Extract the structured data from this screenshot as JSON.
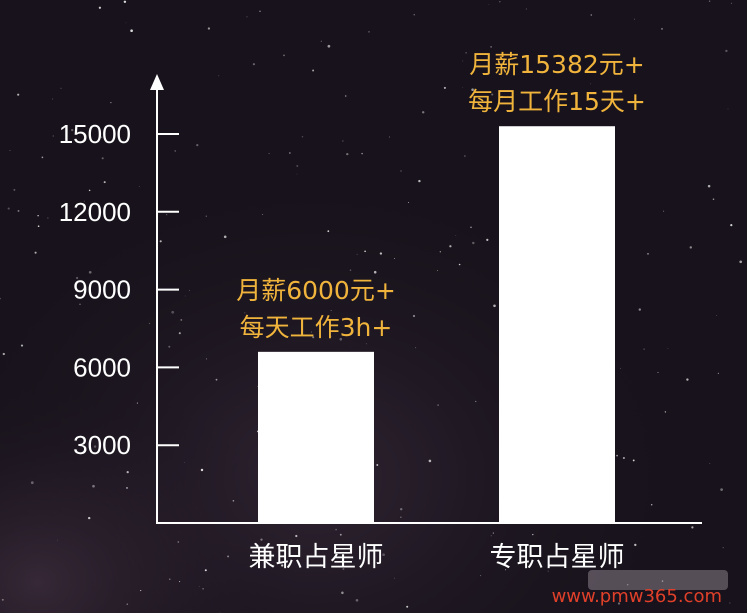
{
  "chart_data": {
    "type": "bar",
    "categories": [
      "兼职占星师",
      "专职占星师"
    ],
    "values": [
      6600,
      15300
    ],
    "yticks": [
      3000,
      6000,
      9000,
      12000,
      15000
    ],
    "ylim": [
      0,
      17000
    ],
    "annotations": [
      [
        "月薪6000元+",
        "每天工作3h+"
      ],
      [
        "月薪15382元+",
        "每月工作15天+"
      ]
    ],
    "bar_color": "#ffffff",
    "annotation_color": "#f0b43c",
    "axis_color": "#ffffff",
    "grid": false,
    "legend": "none"
  },
  "watermark": {
    "text": "www.pmw365.com",
    "color": "#e0402a"
  }
}
